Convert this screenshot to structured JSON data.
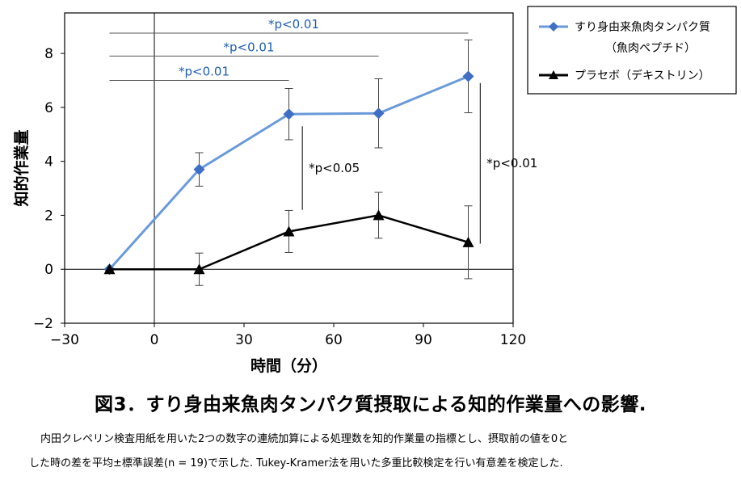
{
  "chart_data": {
    "type": "line",
    "xlabel": "時間（分）",
    "ylabel": "知的作業量",
    "xlim": [
      -30,
      120
    ],
    "ylim": [
      -2,
      9.5
    ],
    "xticks": [
      -30,
      0,
      30,
      60,
      90,
      120
    ],
    "yticks": [
      -2,
      0,
      2,
      4,
      6,
      8
    ],
    "xtick_labels": [
      "−30",
      "0",
      "30",
      "60",
      "90",
      "120"
    ],
    "ytick_labels": [
      "−2",
      "0",
      "2",
      "4",
      "6",
      "8"
    ],
    "legend_position": "outside-right-top",
    "series": [
      {
        "name": "すり身由来魚肉タンパク質",
        "name_line2": "（魚肉ペプチド）",
        "color": "#6a9ad8",
        "marker": "diamond",
        "marker_color": "#3f6fc4",
        "x": [
          -15,
          15,
          45,
          75,
          105
        ],
        "y": [
          0,
          3.7,
          5.75,
          5.78,
          7.15
        ],
        "err": [
          0,
          0.62,
          0.95,
          1.28,
          1.35
        ]
      },
      {
        "name": "プラセボ（デキストリン）",
        "color": "#000000",
        "marker": "triangle",
        "marker_color": "#000000",
        "x": [
          -15,
          15,
          45,
          75,
          105
        ],
        "y": [
          0,
          0,
          1.4,
          2.0,
          1.0
        ],
        "err": [
          0,
          0.6,
          0.78,
          0.85,
          1.35
        ]
      }
    ],
    "annotations": [
      {
        "text": "*p<0.01",
        "color": "#1f5fb0",
        "type": "bracket",
        "x0": -15,
        "x1": 105,
        "y": 8.75
      },
      {
        "text": "*p<0.01",
        "color": "#1f5fb0",
        "type": "bracket",
        "x0": -15,
        "x1": 75,
        "y": 7.9
      },
      {
        "text": "*p<0.01",
        "color": "#1f5fb0",
        "type": "bracket",
        "x0": -15,
        "x1": 45,
        "y": 7.0
      },
      {
        "text": "*p<0.05",
        "color": "#000000",
        "type": "vline",
        "x": 49.5,
        "y0": 2.2,
        "y1": 5.3
      },
      {
        "text": "*p<0.01",
        "color": "#000000",
        "type": "vline",
        "x": 109,
        "y0": 0.95,
        "y1": 6.9
      }
    ]
  },
  "caption": {
    "title": "図3．すり身由来魚肉タンパク質摂取による知的作業量への影響.",
    "note1": "内田クレペリン検査用紙を用いた2つの数字の連続加算による処理数を知的作業量の指標とし、摂取前の値を0と",
    "note2": "した時の差を平均±標準誤差(n = 19)で示した. Tukey-Kramer法を用いた多重比較検定を行い有意差を検定した."
  }
}
